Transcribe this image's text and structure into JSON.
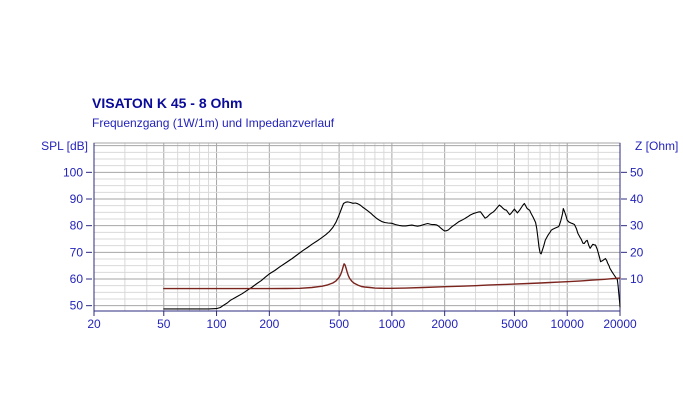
{
  "colors": {
    "background": "#ffffff",
    "title_text": "#0a0a9a",
    "label_text": "#2323bb",
    "axis_frame": "#2b2b80",
    "grid_minor": "#d9d9d9",
    "grid_major": "#a6a6a6",
    "spl_curve": "#000000",
    "impedance_curve": "#7b241e"
  },
  "chart_data": {
    "type": "line",
    "title": "VISATON K 45 - 8 Ohm",
    "subtitle": "Frequenzgang (1W/1m) und Impedanzverlauf",
    "x_axis": {
      "scale": "log",
      "unit": "Hz",
      "min": 20,
      "max": 20000,
      "tick_values": [
        20,
        50,
        100,
        200,
        500,
        1000,
        2000,
        5000,
        10000,
        20000
      ],
      "tick_labels": [
        "20",
        "50",
        "100",
        "200",
        "500",
        "1000",
        "2000",
        "5000",
        "10000",
        "20000"
      ],
      "minor_multipliers": [
        1,
        1.5,
        2,
        3,
        4,
        5,
        6,
        7,
        8,
        9
      ],
      "major_multipliers": [
        1,
        2,
        5
      ]
    },
    "y_axis_left": {
      "label": "SPL [dB]",
      "min": 48,
      "max": 111,
      "tick_values": [
        50,
        60,
        70,
        80,
        90,
        100
      ],
      "tick_labels": [
        "50",
        "60",
        "70",
        "80",
        "90",
        "100"
      ],
      "minor_step": 2.5
    },
    "y_axis_right": {
      "label": "Z [Ohm]",
      "tick_values": [
        10,
        20,
        30,
        40,
        50
      ],
      "tick_labels": [
        "10",
        "20",
        "30",
        "40",
        "50"
      ],
      "alignment": "Z_ohm maps to SPL_dB minus 50 on shared grid"
    },
    "grid": true,
    "series": [
      {
        "name": "Frequenzgang SPL (1W/1m)",
        "axis": "left",
        "unit": "dB",
        "color_key": "spl_curve",
        "points": [
          [
            50,
            48.8
          ],
          [
            60,
            48.8
          ],
          [
            70,
            48.8
          ],
          [
            80,
            48.8
          ],
          [
            90,
            48.8
          ],
          [
            100,
            48.9
          ],
          [
            105,
            49.3
          ],
          [
            110,
            50.2
          ],
          [
            115,
            51.0
          ],
          [
            120,
            52.0
          ],
          [
            130,
            53.3
          ],
          [
            140,
            54.5
          ],
          [
            150,
            55.8
          ],
          [
            160,
            57.0
          ],
          [
            170,
            58.3
          ],
          [
            180,
            59.4
          ],
          [
            190,
            60.7
          ],
          [
            200,
            61.9
          ],
          [
            215,
            63.2
          ],
          [
            230,
            64.6
          ],
          [
            250,
            66.2
          ],
          [
            270,
            67.7
          ],
          [
            290,
            69.2
          ],
          [
            310,
            70.6
          ],
          [
            330,
            71.8
          ],
          [
            350,
            73.0
          ],
          [
            375,
            74.3
          ],
          [
            400,
            75.6
          ],
          [
            420,
            76.6
          ],
          [
            440,
            77.8
          ],
          [
            460,
            79.3
          ],
          [
            480,
            81.3
          ],
          [
            495,
            83.3
          ],
          [
            510,
            85.5
          ],
          [
            520,
            87.0
          ],
          [
            530,
            88.3
          ],
          [
            545,
            88.8
          ],
          [
            560,
            88.9
          ],
          [
            580,
            88.7
          ],
          [
            600,
            88.4
          ],
          [
            620,
            88.5
          ],
          [
            640,
            88.2
          ],
          [
            660,
            87.7
          ],
          [
            680,
            87.0
          ],
          [
            700,
            86.4
          ],
          [
            720,
            85.8
          ],
          [
            740,
            85.2
          ],
          [
            760,
            84.6
          ],
          [
            780,
            83.9
          ],
          [
            800,
            83.3
          ],
          [
            820,
            82.7
          ],
          [
            850,
            82.0
          ],
          [
            880,
            81.5
          ],
          [
            910,
            81.2
          ],
          [
            950,
            81.0
          ],
          [
            1000,
            80.9
          ],
          [
            1050,
            80.4
          ],
          [
            1100,
            80.1
          ],
          [
            1150,
            79.9
          ],
          [
            1200,
            79.9
          ],
          [
            1250,
            80.1
          ],
          [
            1300,
            80.2
          ],
          [
            1350,
            80.0
          ],
          [
            1400,
            79.8
          ],
          [
            1450,
            80.0
          ],
          [
            1500,
            80.3
          ],
          [
            1550,
            80.6
          ],
          [
            1600,
            80.8
          ],
          [
            1650,
            80.6
          ],
          [
            1700,
            80.4
          ],
          [
            1750,
            80.4
          ],
          [
            1800,
            80.3
          ],
          [
            1850,
            79.8
          ],
          [
            1900,
            79.1
          ],
          [
            1950,
            78.5
          ],
          [
            2000,
            78.0
          ],
          [
            2050,
            78.1
          ],
          [
            2100,
            78.4
          ],
          [
            2200,
            79.6
          ],
          [
            2300,
            80.5
          ],
          [
            2400,
            81.4
          ],
          [
            2500,
            82.0
          ],
          [
            2600,
            82.6
          ],
          [
            2700,
            83.3
          ],
          [
            2800,
            84.0
          ],
          [
            2900,
            84.5
          ],
          [
            3000,
            84.8
          ],
          [
            3100,
            85.1
          ],
          [
            3200,
            85.2
          ],
          [
            3300,
            84.0
          ],
          [
            3400,
            82.8
          ],
          [
            3500,
            83.3
          ],
          [
            3600,
            84.1
          ],
          [
            3700,
            84.7
          ],
          [
            3800,
            85.2
          ],
          [
            3900,
            86.0
          ],
          [
            4000,
            86.9
          ],
          [
            4100,
            87.7
          ],
          [
            4200,
            87.2
          ],
          [
            4300,
            86.5
          ],
          [
            4400,
            86.0
          ],
          [
            4500,
            85.8
          ],
          [
            4600,
            84.9
          ],
          [
            4700,
            84.1
          ],
          [
            4800,
            84.7
          ],
          [
            4900,
            85.5
          ],
          [
            5000,
            86.2
          ],
          [
            5100,
            85.5
          ],
          [
            5200,
            84.8
          ],
          [
            5350,
            85.8
          ],
          [
            5500,
            87.0
          ],
          [
            5600,
            87.8
          ],
          [
            5700,
            88.3
          ],
          [
            5800,
            87.4
          ],
          [
            5900,
            86.5
          ],
          [
            6000,
            86.1
          ],
          [
            6100,
            85.8
          ],
          [
            6200,
            84.8
          ],
          [
            6400,
            83.1
          ],
          [
            6600,
            81.2
          ],
          [
            6700,
            79.0
          ],
          [
            6800,
            75.5
          ],
          [
            6900,
            72.0
          ],
          [
            7000,
            69.8
          ],
          [
            7100,
            69.4
          ],
          [
            7200,
            70.6
          ],
          [
            7350,
            72.5
          ],
          [
            7500,
            74.6
          ],
          [
            7650,
            75.6
          ],
          [
            7800,
            76.6
          ],
          [
            8000,
            77.6
          ],
          [
            8100,
            78.3
          ],
          [
            8300,
            78.7
          ],
          [
            8500,
            79.0
          ],
          [
            8700,
            79.3
          ],
          [
            8900,
            79.6
          ],
          [
            9000,
            80.0
          ],
          [
            9200,
            82.0
          ],
          [
            9400,
            84.5
          ],
          [
            9500,
            86.4
          ],
          [
            9650,
            85.3
          ],
          [
            9800,
            84.0
          ],
          [
            10000,
            82.1
          ],
          [
            10200,
            81.4
          ],
          [
            10500,
            81.0
          ],
          [
            10800,
            80.7
          ],
          [
            11000,
            80.4
          ],
          [
            11300,
            78.8
          ],
          [
            11500,
            77.1
          ],
          [
            11800,
            75.8
          ],
          [
            12000,
            75.0
          ],
          [
            12300,
            73.4
          ],
          [
            12500,
            73.3
          ],
          [
            12800,
            74.2
          ],
          [
            13000,
            74.5
          ],
          [
            13300,
            72.5
          ],
          [
            13500,
            71.5
          ],
          [
            13800,
            72.4
          ],
          [
            14000,
            73.0
          ],
          [
            14300,
            72.8
          ],
          [
            14500,
            72.7
          ],
          [
            14800,
            71.3
          ],
          [
            15000,
            70.0
          ],
          [
            15300,
            68.0
          ],
          [
            15500,
            66.5
          ],
          [
            15800,
            66.8
          ],
          [
            16000,
            67.0
          ],
          [
            16300,
            67.4
          ],
          [
            16500,
            67.7
          ],
          [
            16800,
            66.9
          ],
          [
            17000,
            66.0
          ],
          [
            17300,
            65.0
          ],
          [
            17500,
            64.1
          ],
          [
            18000,
            62.7
          ],
          [
            18500,
            61.5
          ],
          [
            19000,
            60.4
          ],
          [
            19300,
            59.8
          ],
          [
            19500,
            57.5
          ],
          [
            19700,
            54.5
          ],
          [
            19900,
            51.5
          ],
          [
            20000,
            49.5
          ]
        ]
      },
      {
        "name": "Impedanzverlauf",
        "axis": "right",
        "unit": "Ohm",
        "color_key": "impedance_curve",
        "points": [
          [
            50,
            6.4
          ],
          [
            100,
            6.4
          ],
          [
            150,
            6.4
          ],
          [
            200,
            6.4
          ],
          [
            250,
            6.45
          ],
          [
            300,
            6.5
          ],
          [
            350,
            6.8
          ],
          [
            400,
            7.3
          ],
          [
            430,
            7.8
          ],
          [
            460,
            8.5
          ],
          [
            480,
            9.3
          ],
          [
            500,
            10.6
          ],
          [
            510,
            11.6
          ],
          [
            520,
            13.2
          ],
          [
            528,
            14.8
          ],
          [
            534,
            15.7
          ],
          [
            540,
            15.3
          ],
          [
            548,
            14.0
          ],
          [
            556,
            12.5
          ],
          [
            565,
            11.2
          ],
          [
            575,
            10.2
          ],
          [
            590,
            9.2
          ],
          [
            610,
            8.4
          ],
          [
            640,
            7.7
          ],
          [
            670,
            7.2
          ],
          [
            700,
            7.0
          ],
          [
            750,
            6.8
          ],
          [
            800,
            6.6
          ],
          [
            900,
            6.5
          ],
          [
            1000,
            6.5
          ],
          [
            1200,
            6.6
          ],
          [
            1500,
            6.8
          ],
          [
            2000,
            7.1
          ],
          [
            2500,
            7.3
          ],
          [
            3000,
            7.5
          ],
          [
            3500,
            7.7
          ],
          [
            4000,
            7.85
          ],
          [
            5000,
            8.1
          ],
          [
            6000,
            8.3
          ],
          [
            7000,
            8.5
          ],
          [
            8000,
            8.7
          ],
          [
            9000,
            8.85
          ],
          [
            10000,
            9.0
          ],
          [
            12000,
            9.3
          ],
          [
            14000,
            9.6
          ],
          [
            16000,
            9.85
          ],
          [
            18000,
            10.1
          ],
          [
            20000,
            10.35
          ]
        ]
      }
    ]
  }
}
